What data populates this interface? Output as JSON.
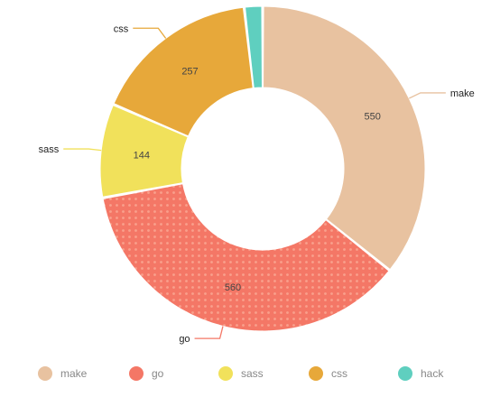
{
  "chart_data": {
    "type": "pie",
    "donut": true,
    "legend_position": "bottom",
    "slices": [
      {
        "name": "make",
        "value": 550,
        "color": "#e8c2a0"
      },
      {
        "name": "go",
        "value": 560,
        "color": "#f47766",
        "pattern": "dots"
      },
      {
        "name": "sass",
        "value": 144,
        "color": "#f1e15b"
      },
      {
        "name": "css",
        "value": 257,
        "color": "#e7a83a"
      },
      {
        "name": "hack",
        "value": 28,
        "color": "#5fcfbf"
      }
    ]
  }
}
